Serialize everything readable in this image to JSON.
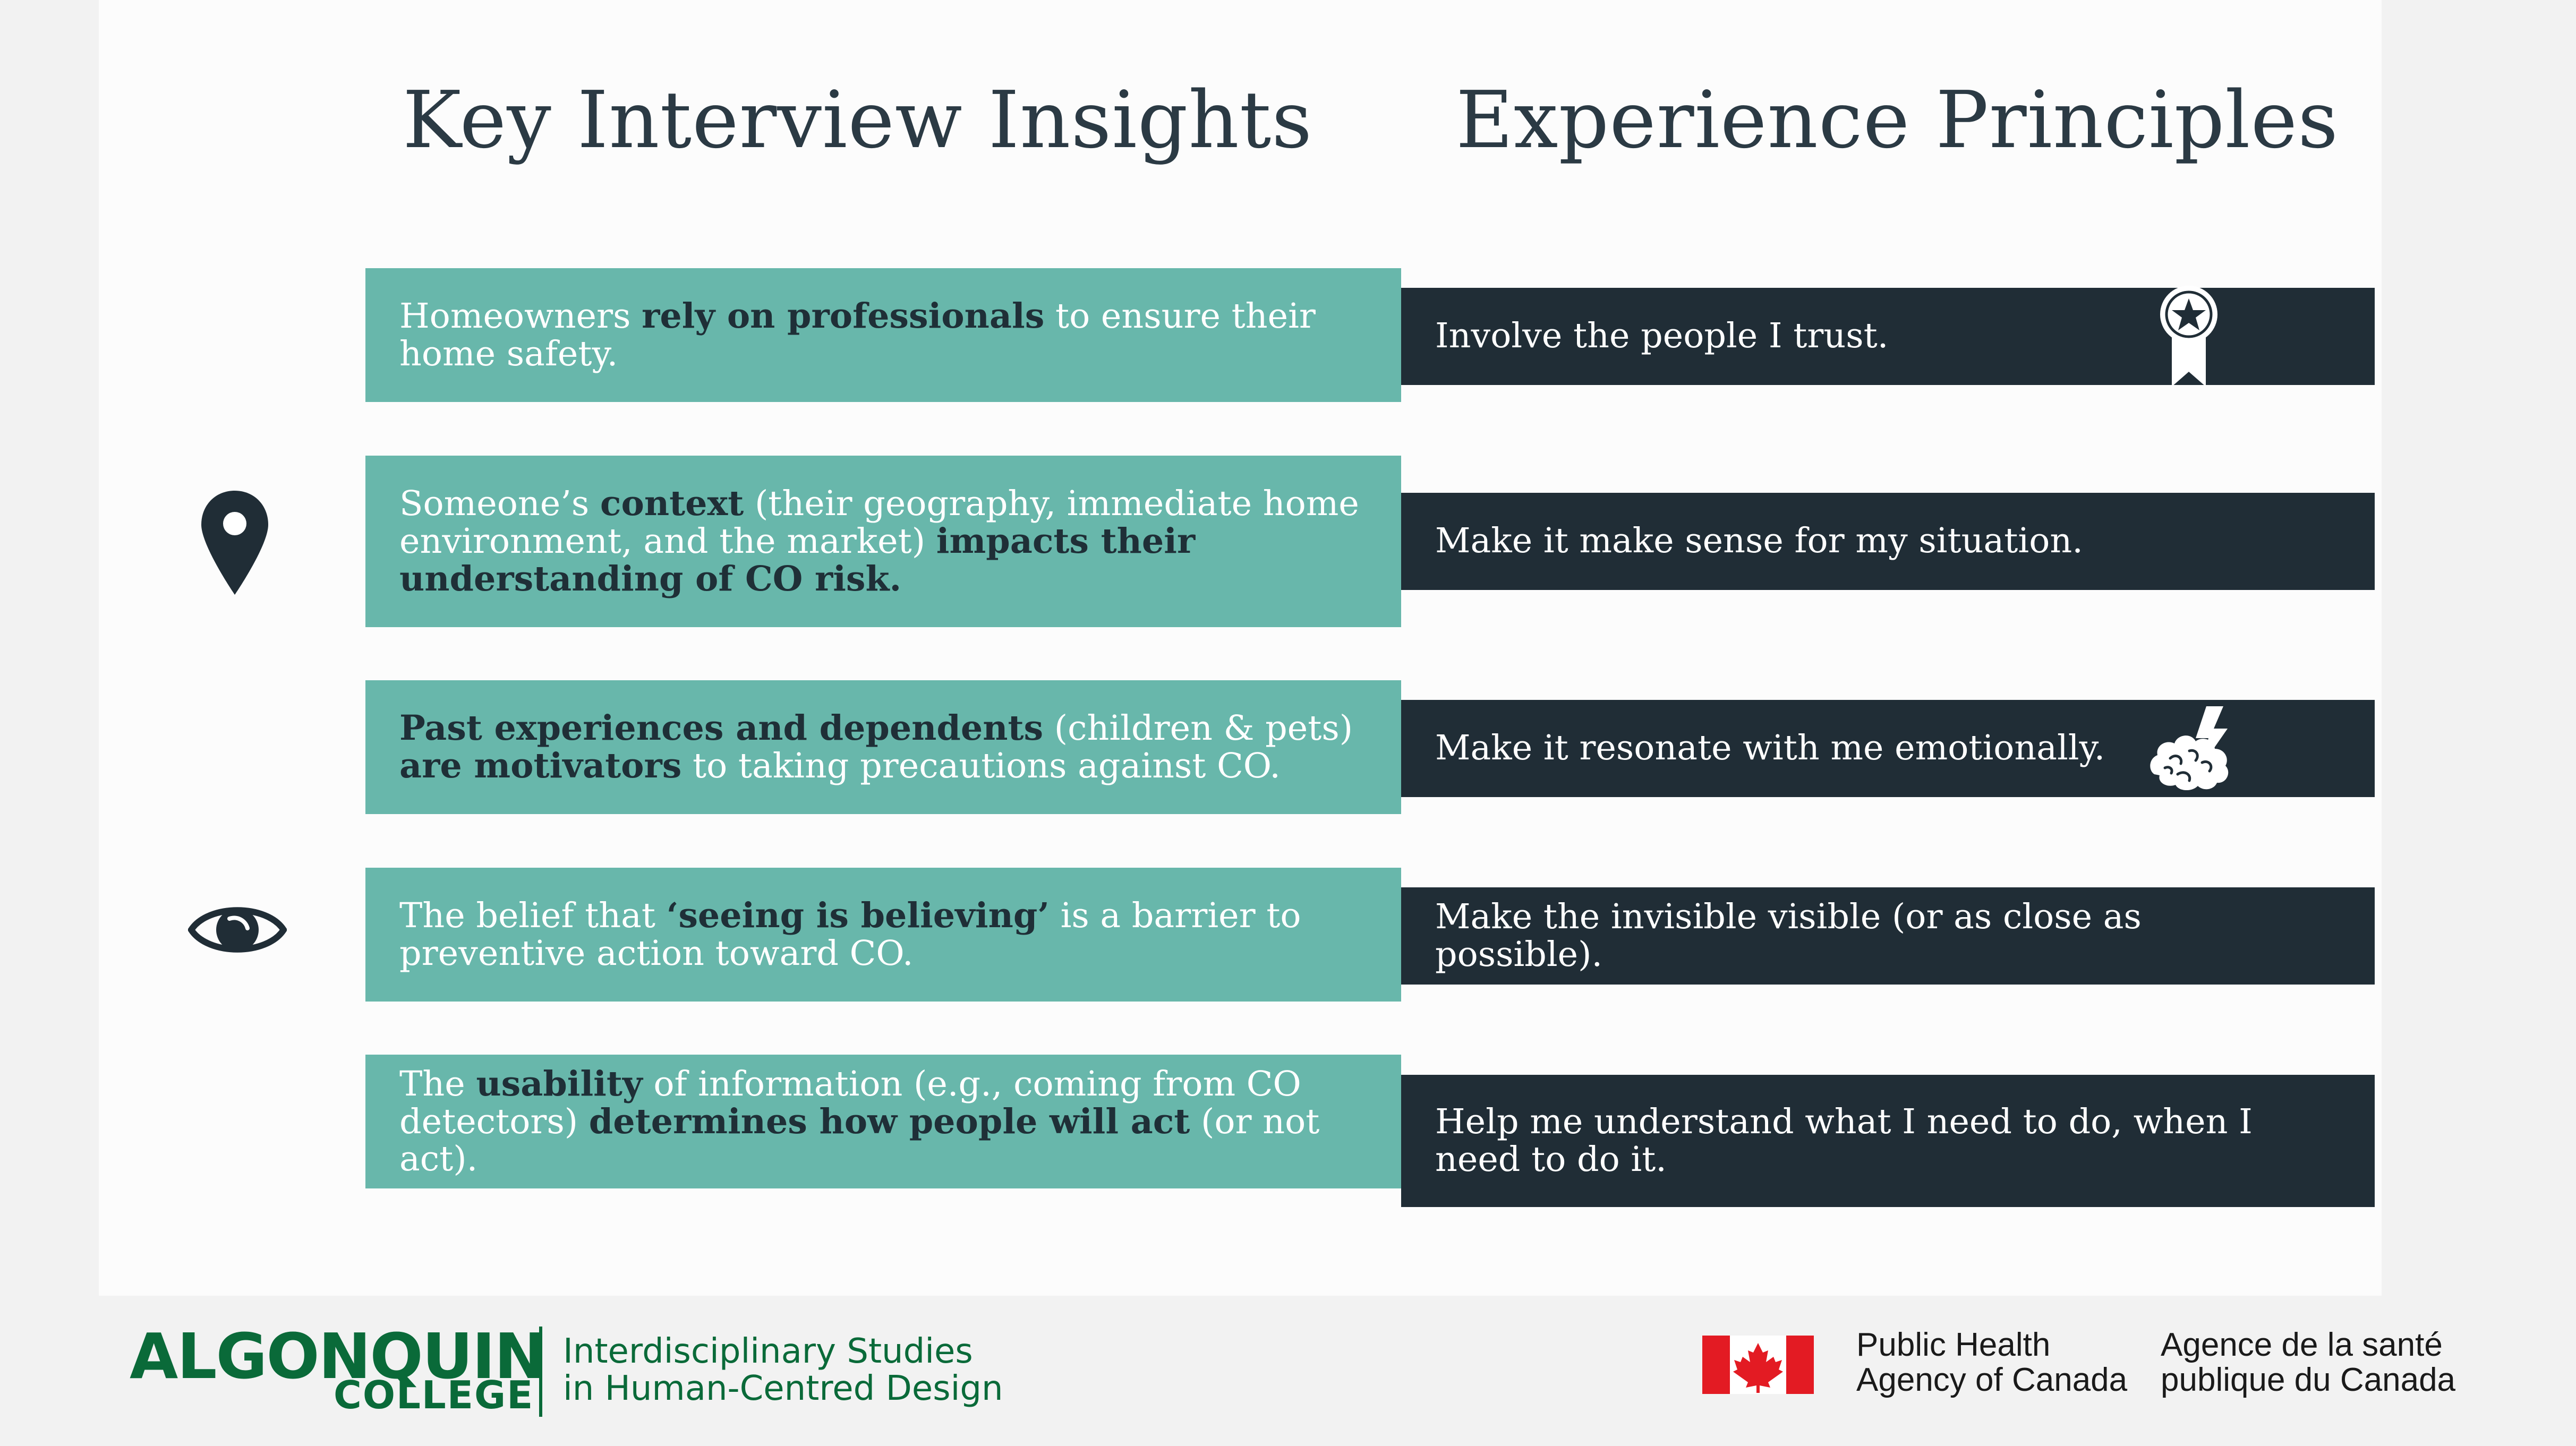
{
  "headings": {
    "insights": "Key Interview Insights",
    "principles": "Experience Principles"
  },
  "insights": [
    {
      "parts": [
        {
          "text": "Homeowners ",
          "bold": false
        },
        {
          "text": "rely on professionals",
          "bold": true
        },
        {
          "text": " to ensure their home safety.",
          "bold": false
        }
      ]
    },
    {
      "parts": [
        {
          "text": "Someone’s ",
          "bold": false
        },
        {
          "text": "context",
          "bold": true
        },
        {
          "text": " (their geography, immediate home environment, and the market) ",
          "bold": false
        },
        {
          "text": "impacts their understanding of CO risk.",
          "bold": true
        }
      ]
    },
    {
      "parts": [
        {
          "text": "Past experiences and dependents",
          "bold": true
        },
        {
          "text": " (children & pets) ",
          "bold": false
        },
        {
          "text": "are motivators",
          "bold": true
        },
        {
          "text": " to taking precautions against CO.",
          "bold": false
        }
      ]
    },
    {
      "parts": [
        {
          "text": "The belief that ",
          "bold": false
        },
        {
          "text": "‘seeing is believing’",
          "bold": true
        },
        {
          "text": " is a barrier to preventive action toward CO.",
          "bold": false
        }
      ]
    },
    {
      "parts": [
        {
          "text": "The ",
          "bold": false
        },
        {
          "text": "usability",
          "bold": true
        },
        {
          "text": " of information (e.g., coming from CO detectors) ",
          "bold": false
        },
        {
          "text": "determines how people will act",
          "bold": true
        },
        {
          "text": " (or not act).",
          "bold": false
        }
      ]
    }
  ],
  "principles": [
    {
      "text": "Involve the people I trust.",
      "icon": "award-ribbon-icon"
    },
    {
      "text": "Make it make sense for my situation.",
      "icon": ""
    },
    {
      "text": "Make it resonate with me emotionally.",
      "icon": "brain-lightning-icon"
    },
    {
      "text": "Make the invisible visible (or as close as possible).",
      "icon": ""
    },
    {
      "text": "Help me understand what I need to do, when I need to do it.",
      "icon": ""
    }
  ],
  "side_icons": [
    "location-pin-icon",
    "eye-icon"
  ],
  "footer": {
    "college_name": "ALGONQUIN",
    "college_word": "COLLEGE",
    "program_line1": "Interdisciplinary Studies",
    "program_line2": "in Human-Centred Design",
    "agency_en_line1": "Public Health",
    "agency_en_line2": "Agency of Canada",
    "agency_fr_line1": "Agence de la santé",
    "agency_fr_line2": "publique du Canada"
  },
  "colors": {
    "teal": "#68b7ab",
    "navy": "#202d36",
    "heading": "#2b3a44",
    "college_green": "#0a6a39",
    "canada_red": "#e31b23"
  }
}
